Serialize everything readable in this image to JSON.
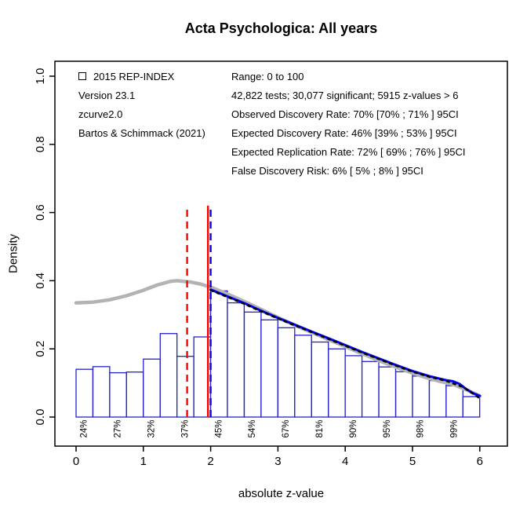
{
  "title": "Acta Psychologica: All years",
  "legend": {
    "line1": "2015 REP-INDEX",
    "line2": "Version 23.1",
    "line3": "zcurve2.0",
    "line4": "Bartos & Schimmack (2021)"
  },
  "stats": [
    "Range: 0 to 100",
    "42,822 tests; 30,077 significant; 5915 z-values > 6",
    "Observed Discovery Rate: 70% [70% ; 71% ] 95CI",
    "Expected Discovery Rate: 46% [39% ; 53% ] 95CI",
    "Expected Replication Rate: 72% [ 69% ; 76% ] 95CI",
    "False Discovery Risk: 6% [ 5% ; 8% ] 95CI"
  ],
  "chart_data": {
    "type": "bar",
    "subtype": "histogram-with-fit-curves",
    "title": "Acta Psychologica: All years",
    "xlabel": "absolute z-value",
    "ylabel": "Density",
    "xlim": [
      0,
      6
    ],
    "ylim": [
      0,
      1
    ],
    "x_ticks": [
      "0",
      "1",
      "2",
      "3",
      "4",
      "5",
      "6"
    ],
    "y_ticks": [
      "0.0",
      "0.2",
      "0.4",
      "0.6",
      "0.8",
      "1.0"
    ],
    "grid": false,
    "bar_width": 0.25,
    "bar_start": 0,
    "bar_color": "#2222cc",
    "bar_fill": "#ffffff",
    "bars": [
      0.14,
      0.148,
      0.13,
      0.132,
      0.17,
      0.245,
      0.178,
      0.235,
      0.37,
      0.335,
      0.308,
      0.285,
      0.262,
      0.24,
      0.22,
      0.2,
      0.18,
      0.163,
      0.147,
      0.133,
      0.12,
      0.107,
      0.092,
      0.06
    ],
    "percent_labels": [
      {
        "x": 0.125,
        "label": "24%"
      },
      {
        "x": 0.625,
        "label": "27%"
      },
      {
        "x": 1.125,
        "label": "32%"
      },
      {
        "x": 1.625,
        "label": "37%"
      },
      {
        "x": 2.125,
        "label": "45%"
      },
      {
        "x": 2.625,
        "label": "54%"
      },
      {
        "x": 3.125,
        "label": "67%"
      },
      {
        "x": 3.625,
        "label": "81%"
      },
      {
        "x": 4.125,
        "label": "90%"
      },
      {
        "x": 4.625,
        "label": "95%"
      },
      {
        "x": 5.125,
        "label": "98%"
      },
      {
        "x": 5.625,
        "label": "99%"
      }
    ],
    "curves": [
      {
        "name": "kernel-density-gray-curve",
        "color": "#b3b3b3",
        "width": 4.5,
        "dash": "",
        "points": [
          [
            0.0,
            0.335
          ],
          [
            0.25,
            0.337
          ],
          [
            0.5,
            0.344
          ],
          [
            0.75,
            0.356
          ],
          [
            1.0,
            0.372
          ],
          [
            1.2,
            0.387
          ],
          [
            1.4,
            0.398
          ],
          [
            1.5,
            0.4
          ],
          [
            1.7,
            0.396
          ],
          [
            1.85,
            0.39
          ],
          [
            2.0,
            0.381
          ],
          [
            2.2,
            0.365
          ],
          [
            2.4,
            0.348
          ],
          [
            2.6,
            0.33
          ],
          [
            2.8,
            0.311
          ],
          [
            3.0,
            0.292
          ],
          [
            3.2,
            0.274
          ],
          [
            3.4,
            0.257
          ],
          [
            3.6,
            0.24
          ],
          [
            3.8,
            0.223
          ],
          [
            4.0,
            0.207
          ],
          [
            4.2,
            0.19
          ],
          [
            4.4,
            0.174
          ],
          [
            4.6,
            0.158
          ],
          [
            4.8,
            0.143
          ],
          [
            5.0,
            0.129
          ],
          [
            5.2,
            0.116
          ],
          [
            5.4,
            0.105
          ],
          [
            5.6,
            0.096
          ],
          [
            5.8,
            0.08
          ],
          [
            6.0,
            0.062
          ]
        ]
      },
      {
        "name": "zcurve-fit-blue-curve",
        "color": "#0000ee",
        "width": 3,
        "dash": "",
        "points": [
          [
            2.0,
            0.374
          ],
          [
            2.1,
            0.366
          ],
          [
            2.25,
            0.354
          ],
          [
            2.5,
            0.334
          ],
          [
            2.75,
            0.312
          ],
          [
            3.0,
            0.291
          ],
          [
            3.25,
            0.271
          ],
          [
            3.5,
            0.251
          ],
          [
            3.75,
            0.231
          ],
          [
            4.0,
            0.211
          ],
          [
            4.25,
            0.191
          ],
          [
            4.5,
            0.172
          ],
          [
            4.75,
            0.153
          ],
          [
            5.0,
            0.135
          ],
          [
            5.25,
            0.12
          ],
          [
            5.5,
            0.108
          ],
          [
            5.6,
            0.105
          ],
          [
            5.7,
            0.097
          ],
          [
            5.8,
            0.082
          ],
          [
            5.9,
            0.07
          ],
          [
            6.0,
            0.062
          ]
        ]
      },
      {
        "name": "zcurve-fit-black-dotted-curve",
        "color": "#000000",
        "width": 2.5,
        "dash": "3 5.5",
        "points": [
          [
            2.0,
            0.372
          ],
          [
            2.25,
            0.352
          ],
          [
            2.5,
            0.332
          ],
          [
            2.75,
            0.31
          ],
          [
            3.0,
            0.289
          ],
          [
            3.25,
            0.269
          ],
          [
            3.5,
            0.249
          ],
          [
            3.75,
            0.229
          ],
          [
            4.0,
            0.209
          ],
          [
            4.25,
            0.189
          ],
          [
            4.5,
            0.17
          ],
          [
            4.75,
            0.151
          ],
          [
            5.0,
            0.133
          ],
          [
            5.25,
            0.118
          ],
          [
            5.5,
            0.106
          ],
          [
            5.75,
            0.088
          ],
          [
            6.0,
            0.055
          ]
        ]
      }
    ],
    "vlines": [
      {
        "name": "significance-line-p05-red-dashed",
        "x": 1.65,
        "y0": 0,
        "y1": 0.62,
        "color": "#ff0000",
        "style": "dashed"
      },
      {
        "name": "criterion-line-red-solid",
        "x": 1.96,
        "y0": 0,
        "y1": 0.62,
        "color": "#ff0000",
        "style": "solid"
      },
      {
        "name": "selection-line-blue-dashed",
        "x": 2.0,
        "y0": 0,
        "y1": 0.62,
        "color": "#0000ee",
        "style": "dashed"
      }
    ],
    "axis_color": "#000000"
  }
}
